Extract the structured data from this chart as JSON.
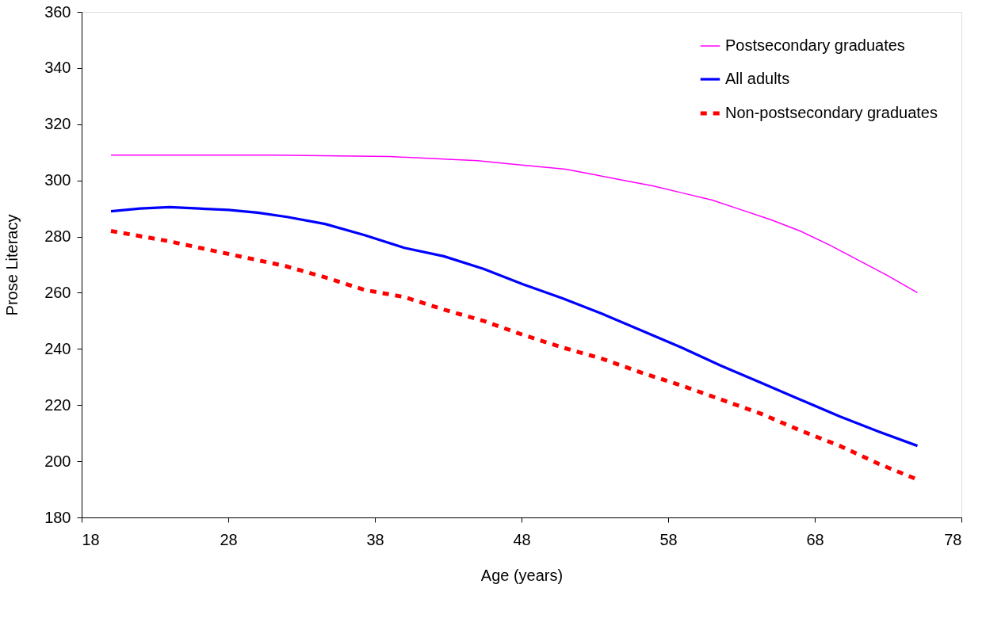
{
  "chart_data": {
    "type": "line",
    "xlabel": "Age (years)",
    "ylabel": "Prose Literacy",
    "xlim": [
      18,
      78
    ],
    "xticks": [
      18,
      28,
      38,
      48,
      58,
      68,
      78
    ],
    "ylim": [
      180,
      360
    ],
    "yticks": [
      180,
      200,
      220,
      240,
      260,
      280,
      300,
      320,
      340,
      360
    ],
    "grid": false,
    "legend": "top right",
    "marker": "none",
    "series": [
      {
        "name": "Postsecondary graduates",
        "color": "#ff00ff",
        "line_style": "solid",
        "x": [
          20,
          25,
          31,
          39,
          43,
          45,
          47,
          49,
          51,
          53,
          55,
          57,
          59,
          61,
          63,
          65,
          67,
          69,
          71,
          73,
          75
        ],
        "values": [
          309,
          309,
          309,
          308.5,
          307.5,
          307,
          306,
          305,
          304,
          302,
          300,
          298,
          295.5,
          293,
          289.5,
          286,
          282,
          277,
          271.5,
          266,
          260
        ]
      },
      {
        "name": "All adults",
        "color": "#0000ff",
        "line_style": "solid",
        "x": [
          20,
          22,
          24,
          26,
          28,
          30,
          32,
          34.6,
          37.3,
          40,
          42.7,
          45.4,
          48.1,
          50.8,
          53.5,
          56.2,
          58.9,
          61.6,
          64.3,
          67,
          69.7,
          72.4,
          75
        ],
        "values": [
          289,
          290,
          290.5,
          290,
          289.5,
          288.5,
          287,
          284.5,
          280.5,
          276,
          273,
          268.5,
          263,
          258,
          252.5,
          246.5,
          240.5,
          234,
          228,
          222,
          216,
          210.5,
          205.5
        ]
      },
      {
        "name": "Non-postsecondary graduates",
        "color": "#ff0000",
        "line_style": "dashed",
        "x": [
          20,
          23.8,
          26.5,
          29.2,
          31.9,
          34.6,
          37.3,
          40,
          42.7,
          45.4,
          48.1,
          50.8,
          53.5,
          56.2,
          58.9,
          61.6,
          64.3,
          67,
          69.7,
          72.4,
          75
        ],
        "values": [
          282,
          278.5,
          275.5,
          272.5,
          269.5,
          265.5,
          261,
          258.5,
          254,
          250,
          245,
          240.5,
          236.5,
          231.5,
          227,
          222,
          217,
          211,
          205.5,
          199,
          193.5
        ]
      }
    ]
  }
}
